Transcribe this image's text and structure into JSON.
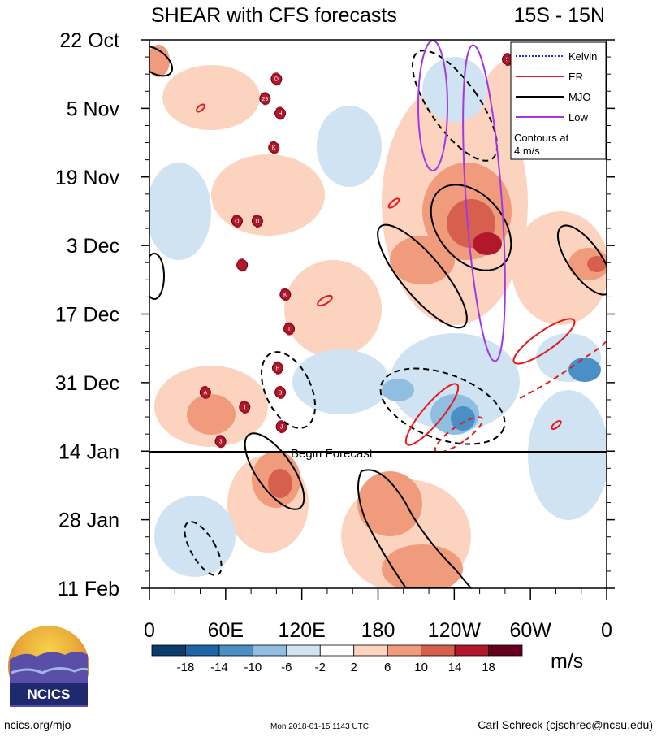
{
  "chart_data": {
    "type": "heatmap",
    "title": "SHEAR with CFS forecasts",
    "region": "15S - 15N",
    "y_ticks": [
      "22 Oct",
      "5 Nov",
      "19 Nov",
      "3 Dec",
      "17 Dec",
      "31 Dec",
      "14 Jan",
      "28 Jan",
      "11 Feb"
    ],
    "x_ticks": [
      "0",
      "60E",
      "120E",
      "180",
      "120W",
      "60W",
      "0"
    ],
    "forecast_label": "Begin Forecast",
    "legend": {
      "entries": [
        {
          "name": "Kelvin",
          "color": "#1f2fd8",
          "style": "dotted"
        },
        {
          "name": "ER",
          "color": "#e41a1c",
          "style": "solid"
        },
        {
          "name": "MJO",
          "color": "#000000",
          "style": "solid"
        },
        {
          "name": "Low",
          "color": "#a23ae0",
          "style": "solid"
        }
      ],
      "note_line1": "Contours at",
      "note_line2": "4 m/s"
    },
    "colorbar": {
      "unit": "m/s",
      "labels": [
        "-18",
        "-14",
        "-10",
        "-6",
        "-2",
        "2",
        "6",
        "10",
        "14",
        "18"
      ],
      "colors": [
        "#0a3d6e",
        "#1f63a8",
        "#4a8fc6",
        "#8fbee0",
        "#cfe3f2",
        "#ffffff",
        "#fbd3bf",
        "#f09c7c",
        "#d6604d",
        "#b2182b",
        "#67001f"
      ]
    },
    "storms": [
      {
        "label": "D",
        "lon": 100,
        "date": "Oct 30"
      },
      {
        "label": "29",
        "lon": 91,
        "date": "Nov 3"
      },
      {
        "label": "H",
        "lon": 103,
        "date": "Nov 6"
      },
      {
        "label": "K",
        "lon": 98,
        "date": "Nov 13"
      },
      {
        "label": "O",
        "lon": 69,
        "date": "Nov 28"
      },
      {
        "label": "D",
        "lon": 85,
        "date": "Nov 28"
      },
      {
        "label": "",
        "lon": 73,
        "date": "Dec 7"
      },
      {
        "label": "K",
        "lon": 107,
        "date": "Dec 13"
      },
      {
        "label": "T",
        "lon": 110,
        "date": "Dec 20"
      },
      {
        "label": "H",
        "lon": 101,
        "date": "Dec 28"
      },
      {
        "label": "A",
        "lon": 44,
        "date": "Jan 2"
      },
      {
        "label": "B",
        "lon": 103,
        "date": "Jan 2"
      },
      {
        "label": "I",
        "lon": 75,
        "date": "Jan 5"
      },
      {
        "label": "J",
        "lon": 104,
        "date": "Jan 9"
      },
      {
        "label": "3",
        "lon": 56,
        "date": "Jan 12"
      },
      {
        "label": "S",
        "lon": 282,
        "date": "Oct 26"
      },
      {
        "label": "S",
        "lon": 286,
        "date": "Oct 26"
      }
    ]
  },
  "branding": {
    "logo_text": "NCICS",
    "site": "ncics.org/mjo",
    "timestamp": "Mon 2018-01-15 1143 UTC",
    "author": "Carl Schreck (cjschrec@ncsu.edu)"
  }
}
